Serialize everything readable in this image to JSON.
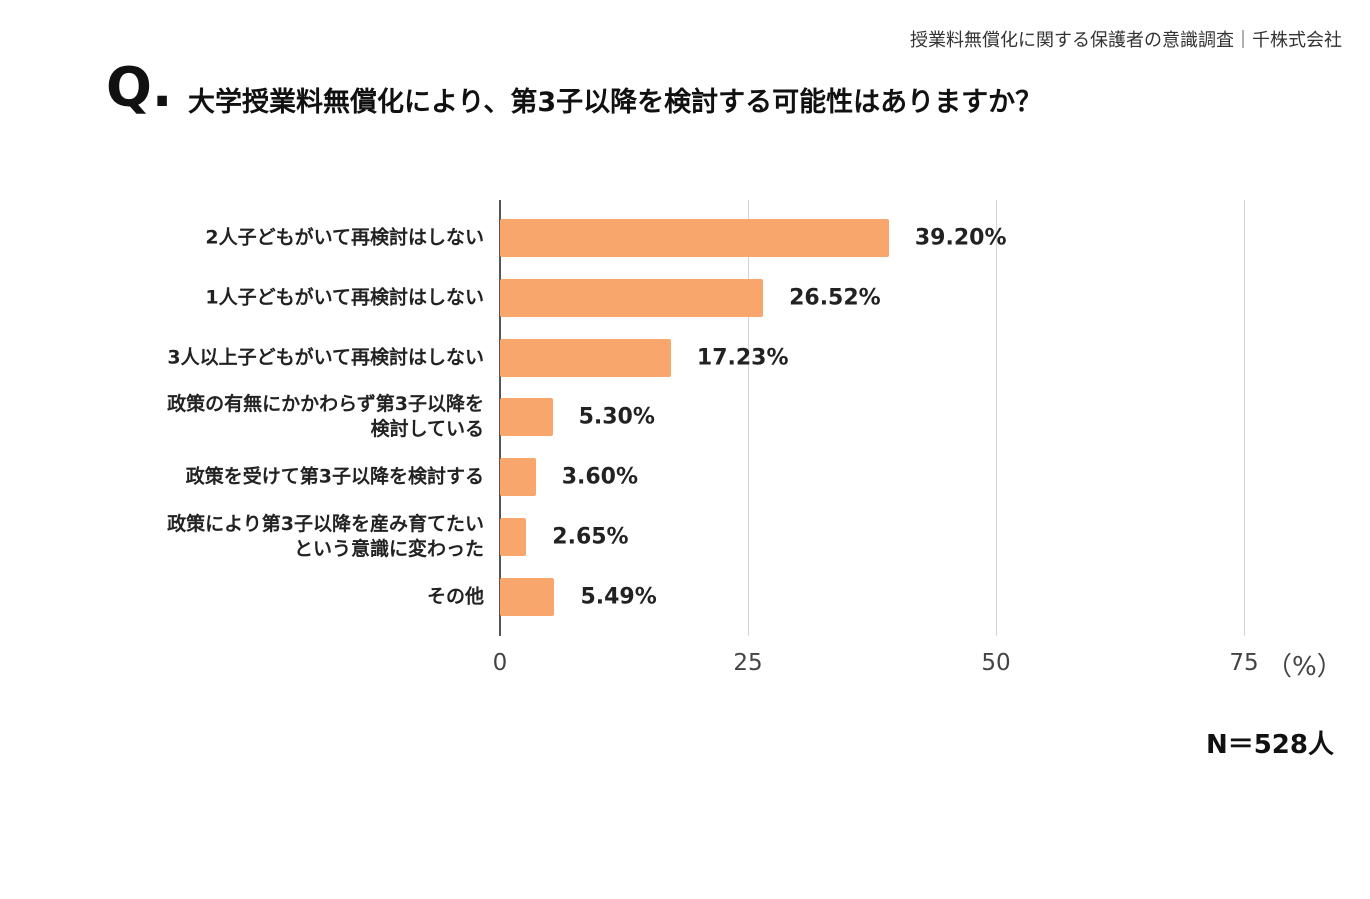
{
  "header": {
    "source": "授業料無償化に関する保護者の意識調査｜千株式会社",
    "q_mark": "Q.",
    "title": "大学授業料無償化により、第3子以降を検討する可能性はありますか？"
  },
  "chart_data": {
    "type": "bar",
    "orientation": "horizontal",
    "title": "大学授業料無償化により、第3子以降を検討する可能性はありますか？",
    "categories": [
      [
        "2人子どもがいて再検討はしない"
      ],
      [
        "1人子どもがいて再検討はしない"
      ],
      [
        "3人以上子どもがいて再検討はしない"
      ],
      [
        "政策の有無にかかわらず第3子以降を",
        "検討している"
      ],
      [
        "政策を受けて第3子以降を検討する"
      ],
      [
        "政策により第3子以降を産み育てたい",
        "という意識に変わった"
      ],
      [
        "その他"
      ]
    ],
    "values": [
      39.2,
      26.52,
      17.23,
      5.3,
      3.6,
      2.65,
      5.49
    ],
    "value_labels": [
      "39.20%",
      "26.52%",
      "17.23%",
      "5.30%",
      "3.60%",
      "2.65%",
      "5.49%"
    ],
    "xlim": [
      0,
      75
    ],
    "x_ticks": [
      "0",
      "25",
      "50",
      "75"
    ],
    "x_unit": "（%）",
    "grid": true,
    "color": "#F9A66C",
    "note": "N＝528人"
  }
}
